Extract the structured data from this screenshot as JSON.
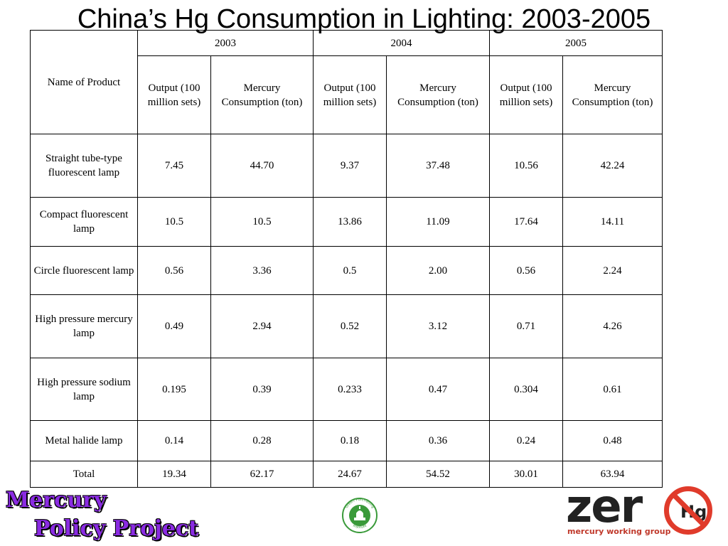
{
  "title": "China’s Hg Consumption in Lighting:  2003-2005",
  "table": {
    "name_header": "Name of Product",
    "years": [
      "2003",
      "2004",
      "2005"
    ],
    "output_header": "Output (100 million sets)",
    "mercury_header": "Mercury Consumption (ton)",
    "rows": [
      {
        "name": "Straight tube-type fluorescent lamp",
        "cells": [
          "7.45",
          "44.70",
          "9.37",
          "37.48",
          "10.56",
          "42.24"
        ]
      },
      {
        "name": "Compact fluorescent lamp",
        "cells": [
          "10.5",
          "10.5",
          "13.86",
          "11.09",
          "17.64",
          "14.11"
        ]
      },
      {
        "name": "Circle fluorescent lamp",
        "cells": [
          "0.56",
          "3.36",
          "0.5",
          "2.00",
          "0.56",
          "2.24"
        ]
      },
      {
        "name": "High pressure mercury lamp",
        "cells": [
          "0.49",
          "2.94",
          "0.52",
          "3.12",
          "0.71",
          "4.26"
        ]
      },
      {
        "name": "High pressure sodium lamp",
        "cells": [
          "0.195",
          "0.39",
          "0.233",
          "0.47",
          "0.304",
          "0.61"
        ]
      },
      {
        "name": "Metal halide lamp",
        "cells": [
          "0.14",
          "0.28",
          "0.18",
          "0.36",
          "0.24",
          "0.48"
        ]
      },
      {
        "name": "Total",
        "cells": [
          "19.34",
          "62.17",
          "24.67",
          "54.52",
          "30.01",
          "63.94"
        ]
      }
    ]
  },
  "logos": {
    "mercury_policy_line1": "Mercury",
    "mercury_policy_line2": "Policy Project",
    "green_purchasing_top": "Green Purchasing",
    "green_purchasing_bottom": "Institute",
    "zero_text": "zer",
    "zero_hg": "Hg",
    "zero_sub": "mercury working group"
  },
  "colors": {
    "mpp_purple": "#8a2be2",
    "zero_red": "#e03b2b",
    "gpi_green": "#3a9a3a"
  }
}
